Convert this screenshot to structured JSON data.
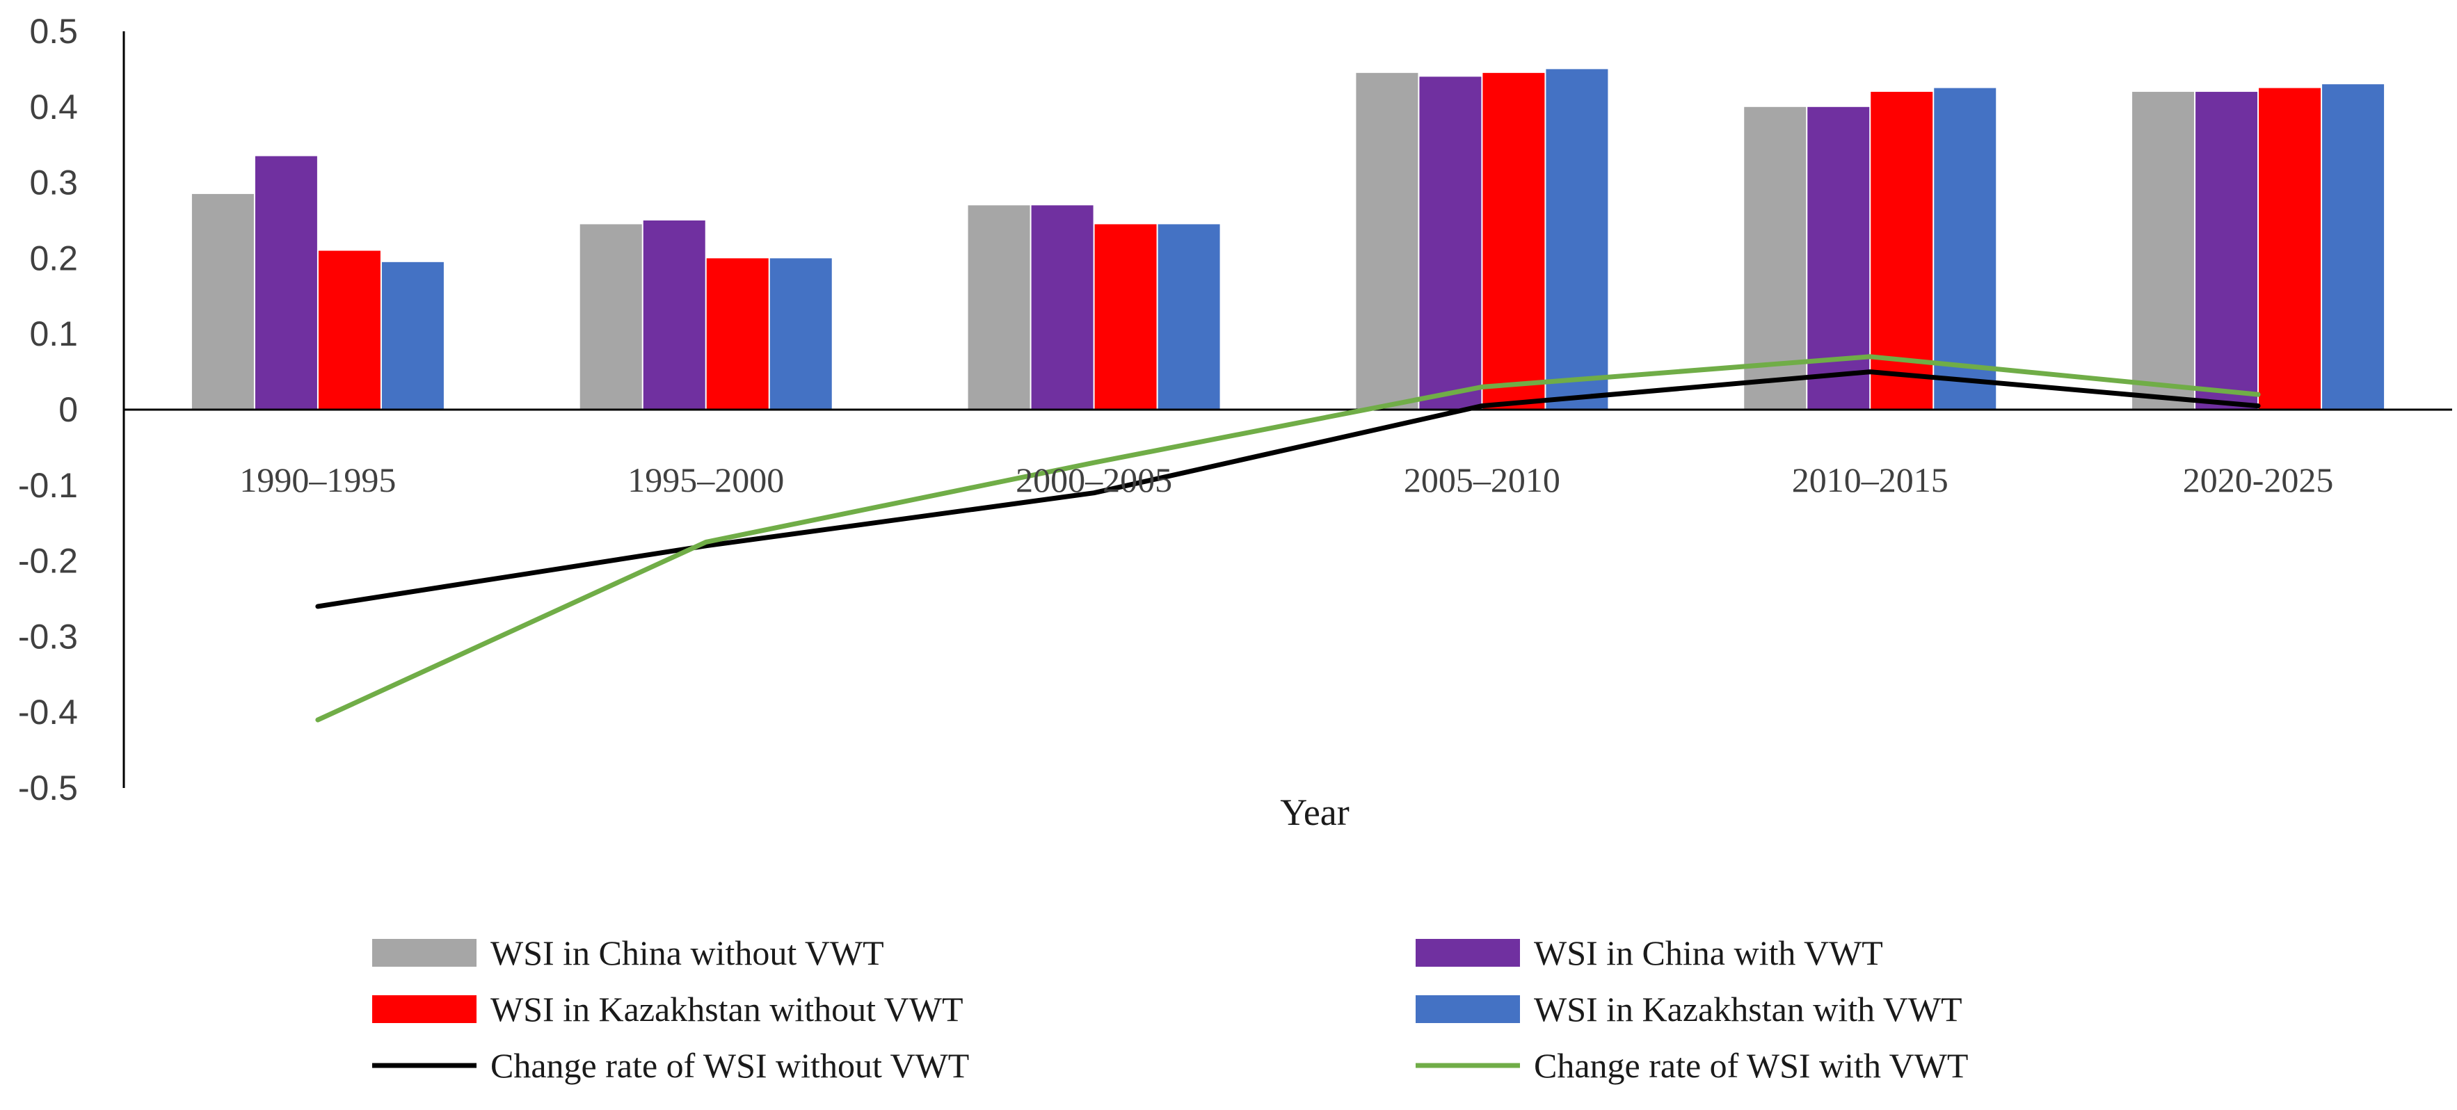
{
  "chart_data": {
    "type": "bar",
    "title": "",
    "xlabel": "Year",
    "ylabel": "",
    "ylim": [
      -0.5,
      0.5
    ],
    "yticks": [
      -0.5,
      -0.4,
      -0.3,
      -0.2,
      -0.1,
      0,
      0.1,
      0.2,
      0.3,
      0.4,
      0.5
    ],
    "ytick_labels": [
      "-0.5",
      "-0.4",
      "-0.3",
      "-0.2",
      "-0.1",
      "0",
      "0.1",
      "0.2",
      "0.3",
      "0.4",
      "0.5"
    ],
    "categories": [
      "1990–1995",
      "1995–2000",
      "2000–2005",
      "2005–2010",
      "2010–2015",
      "2020-2025"
    ],
    "series": [
      {
        "name": "WSI in China without VWT",
        "kind": "bar",
        "color": "#a6a6a6",
        "values": [
          0.285,
          0.245,
          0.27,
          0.445,
          0.4,
          0.42
        ]
      },
      {
        "name": "WSI in China with VWT",
        "kind": "bar",
        "color": "#7030a0",
        "values": [
          0.335,
          0.25,
          0.27,
          0.44,
          0.4,
          0.42
        ]
      },
      {
        "name": "WSI in Kazakhstan without VWT",
        "kind": "bar",
        "color": "#ff0000",
        "values": [
          0.21,
          0.2,
          0.245,
          0.445,
          0.42,
          0.425
        ]
      },
      {
        "name": "WSI in Kazakhstan with VWT",
        "kind": "bar",
        "color": "#4472c4",
        "values": [
          0.195,
          0.2,
          0.245,
          0.45,
          0.425,
          0.43
        ]
      },
      {
        "name": "Change rate of WSI without VWT",
        "kind": "line",
        "color": "#000000",
        "values": [
          -0.26,
          -0.18,
          -0.11,
          0.005,
          0.05,
          0.005
        ]
      },
      {
        "name": "Change rate of WSI with VWT",
        "kind": "line",
        "color": "#70ad47",
        "values": [
          -0.41,
          -0.175,
          -0.07,
          0.03,
          0.07,
          0.02
        ]
      }
    ],
    "grid": false,
    "legend_position": "bottom"
  }
}
